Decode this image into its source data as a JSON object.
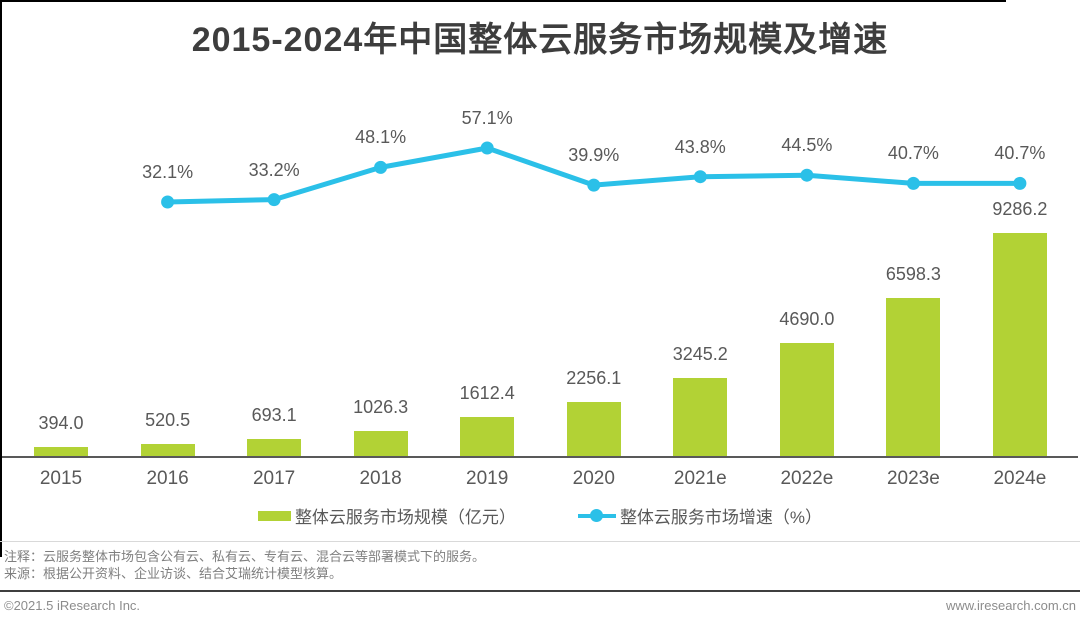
{
  "title": "2015-2024年中国整体云服务市场规模及增速",
  "chart_data": {
    "type": "bar+line",
    "title": "2015-2024年中国整体云服务市场规模及增速",
    "categories": [
      "2015",
      "2016",
      "2017",
      "2018",
      "2019",
      "2020",
      "2021e",
      "2022e",
      "2023e",
      "2024e"
    ],
    "series": [
      {
        "name": "整体云服务市场规模（亿元）",
        "type": "bar",
        "color": "#b2d235",
        "unit": "亿元",
        "values": [
          394.0,
          520.5,
          693.1,
          1026.3,
          1612.4,
          2256.1,
          3245.2,
          4690.0,
          6598.3,
          9286.2
        ]
      },
      {
        "name": "整体云服务市场增速（%）",
        "type": "line",
        "color": "#2bc0e8",
        "unit": "%",
        "x": [
          "2016",
          "2017",
          "2018",
          "2019",
          "2020",
          "2021e",
          "2022e",
          "2023e",
          "2024e"
        ],
        "values": [
          32.1,
          33.2,
          48.1,
          57.1,
          39.9,
          43.8,
          44.5,
          40.7,
          40.7
        ]
      }
    ],
    "grid": false,
    "legend_position": "bottom",
    "value_labels_shown": true
  },
  "colors": {
    "bar": "#b2d235",
    "line": "#2bc0e8",
    "title_text": "#3d3d3d",
    "label_text": "#595959",
    "axis": "#595959"
  },
  "notes": {
    "line1": "注释：云服务整体市场包含公有云、私有云、专有云、混合云等部署模式下的服务。",
    "line2": "来源：根据公开资料、企业访谈、结合艾瑞统计模型核算。"
  },
  "footer": {
    "left": "©2021.5 iResearch Inc.",
    "right": "www.iresearch.com.cn"
  }
}
